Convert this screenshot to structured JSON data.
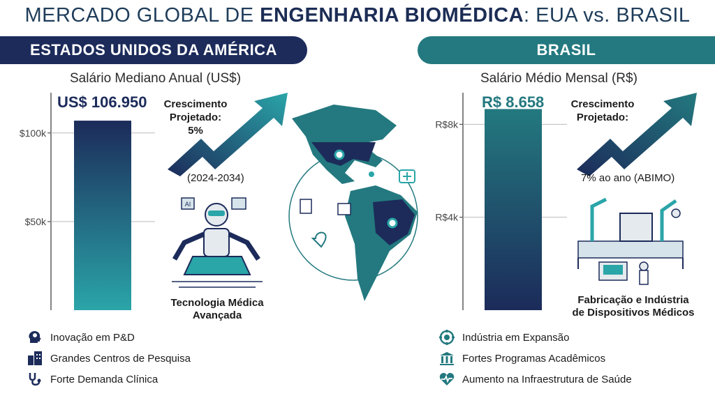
{
  "title": {
    "prefix": "MERCADO GLOBAL DE ",
    "bold": "ENGENHARIA BIOMÉDICA",
    "suffix": ": EUA vs. BRASIL"
  },
  "colors": {
    "navy": "#1c2b5a",
    "teal": "#23797f",
    "light_teal": "#2aa5a8"
  },
  "us": {
    "banner": "ESTADOS UNIDOS DA AMÉRICA",
    "growth_label": "Crescimento\nProjetado:\n5%",
    "growth_period": "(2024-2034)",
    "illustration_caption": "Tecnologia Médica\nAvançada",
    "features": [
      {
        "icon": "brain-head-icon",
        "label": "Inovação em P&D"
      },
      {
        "icon": "buildings-icon",
        "label": "Grandes Centros de Pesquisa"
      },
      {
        "icon": "stethoscope-icon",
        "label": "Forte Demanda Clínica"
      }
    ]
  },
  "br": {
    "banner": "BRASIL",
    "growth_label": "Crescimento\nProjetado:",
    "growth_rate": "7% ao ano (ABIMO)",
    "illustration_caption": "Fabricação e Indústria\nde Dispositivos Médicos",
    "features": [
      {
        "icon": "gear-cycle-icon",
        "label": "Indústria em Expansão"
      },
      {
        "icon": "university-icon",
        "label": "Fortes Programas Acadêmicos"
      },
      {
        "icon": "heart-pulse-icon",
        "label": "Aumento na Infraestrutura de Saúde"
      }
    ]
  },
  "chart_data": [
    {
      "type": "bar",
      "title": "Salário Mediano Anual (US$)",
      "categories": [
        ""
      ],
      "values": [
        106950
      ],
      "value_label": "US$ 106.950",
      "yticks": [
        {
          "v": 50000,
          "label": "$50k"
        },
        {
          "v": 100000,
          "label": "$100k"
        }
      ],
      "ylim": [
        0,
        118000
      ],
      "grid": true
    },
    {
      "type": "bar",
      "title": "Salário Médio Mensal (R$)",
      "categories": [
        ""
      ],
      "values": [
        8658
      ],
      "value_label": "R$ 8.658",
      "yticks": [
        {
          "v": 4000,
          "label": "R$4k"
        },
        {
          "v": 8000,
          "label": "R$8k"
        }
      ],
      "ylim": [
        0,
        9000
      ],
      "grid": true
    }
  ]
}
